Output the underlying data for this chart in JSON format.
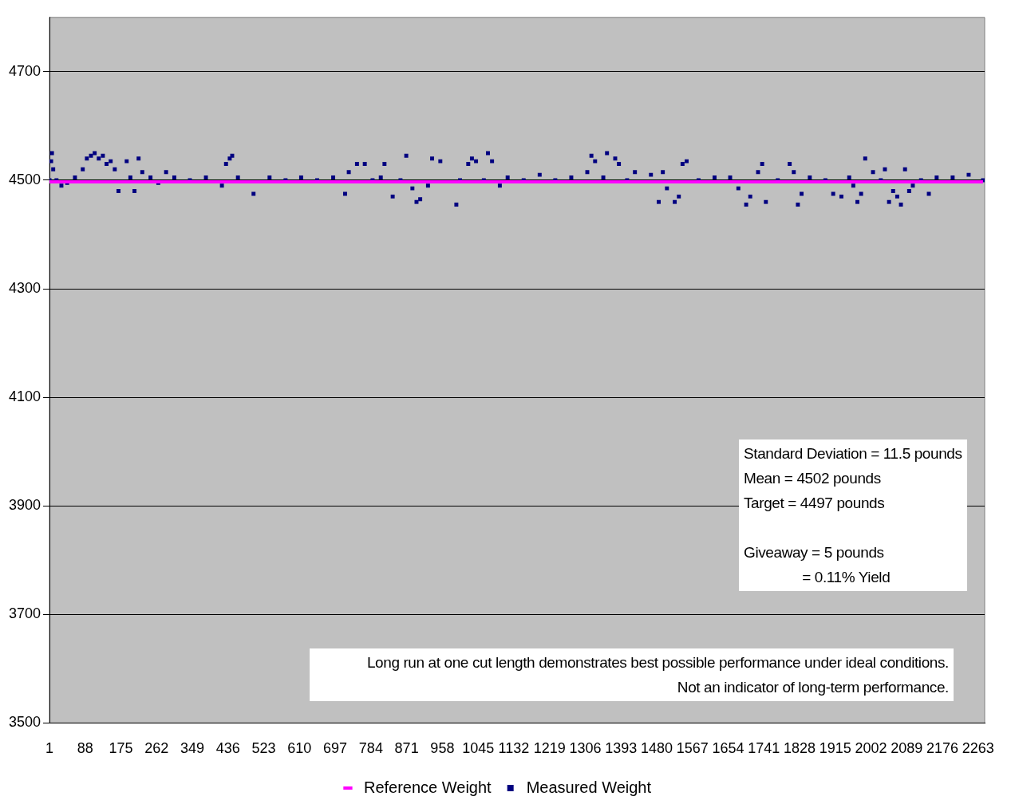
{
  "chart_data": {
    "type": "scatter",
    "xlim": [
      1,
      2279
    ],
    "xticks": [
      1,
      88,
      175,
      262,
      349,
      436,
      523,
      610,
      697,
      784,
      871,
      958,
      1045,
      1132,
      1219,
      1306,
      1393,
      1480,
      1567,
      1654,
      1741,
      1828,
      1915,
      2002,
      2089,
      2176,
      2263
    ],
    "ylim": [
      3500,
      4800
    ],
    "yticks": [
      3500,
      {
        "value": 3700,
        "label": "3700"
      },
      3900,
      4100,
      4300,
      4500,
      4700
    ],
    "grid": "y",
    "legend": "bottom",
    "annotations": [
      "Standard Deviation = 11.5 pounds\nMean = 4502 pounds\nTarget = 4497 pounds\n\nGiveaway = 5 pounds\n               = 0.11% Yield",
      "Long run at one cut length demonstrates best possible performance under ideal conditions.\nNot an indicator of long-term performance."
    ],
    "series": [
      {
        "name": "Reference Weight",
        "type": "line",
        "color": "#ff00ff",
        "marker": "none",
        "x": [
          1,
          2275
        ],
        "values": [
          4497,
          4497
        ]
      },
      {
        "name": "Measured Weight",
        "color": "#000080",
        "marker": "square",
        "x": [
          1,
          5,
          7,
          10,
          18,
          30,
          44,
          63,
          82,
          92,
          102,
          111,
          121,
          131,
          140,
          150,
          160,
          169,
          189,
          198,
          208,
          218,
          227,
          247,
          266,
          285,
          305,
          343,
          382,
          421,
          431,
          440,
          446,
          460,
          498,
          537,
          576,
          614,
          653,
          692,
          721,
          730,
          750,
          769,
          788,
          808,
          817,
          837,
          856,
          870,
          885,
          895,
          904,
          923,
          933,
          953,
          992,
          1001,
          1021,
          1030,
          1040,
          1059,
          1069,
          1079,
          1098,
          1117,
          1156,
          1195,
          1233,
          1272,
          1311,
          1321,
          1330,
          1350,
          1359,
          1379,
          1388,
          1408,
          1427,
          1466,
          1485,
          1495,
          1505,
          1524,
          1534,
          1543,
          1553,
          1582,
          1621,
          1659,
          1679,
          1698,
          1708,
          1727,
          1737,
          1746,
          1775,
          1804,
          1814,
          1824,
          1833,
          1853,
          1891,
          1910,
          1930,
          1949,
          1959,
          1969,
          1978,
          1988,
          2007,
          2026,
          2036,
          2046,
          2056,
          2066,
          2075,
          2085,
          2095,
          2104,
          2124,
          2143,
          2162,
          2201,
          2240,
          2275
        ],
        "values": [
          4500,
          4535,
          4550,
          4520,
          4500,
          4490,
          4495,
          4505,
          4520,
          4540,
          4545,
          4550,
          4540,
          4545,
          4530,
          4535,
          4520,
          4480,
          4535,
          4505,
          4480,
          4540,
          4515,
          4505,
          4495,
          4515,
          4505,
          4500,
          4505,
          4490,
          4530,
          4540,
          4545,
          4505,
          4475,
          4505,
          4500,
          4505,
          4500,
          4505,
          4475,
          4515,
          4530,
          4530,
          4500,
          4505,
          4530,
          4470,
          4500,
          4545,
          4485,
          4460,
          4465,
          4490,
          4540,
          4535,
          4455,
          4500,
          4530,
          4540,
          4535,
          4500,
          4550,
          4535,
          4490,
          4505,
          4500,
          4510,
          4500,
          4505,
          4515,
          4545,
          4535,
          4505,
          4550,
          4540,
          4530,
          4500,
          4515,
          4510,
          4460,
          4515,
          4485,
          4460,
          4470,
          4530,
          4535,
          4500,
          4505,
          4505,
          4485,
          4455,
          4470,
          4515,
          4530,
          4460,
          4500,
          4530,
          4515,
          4455,
          4475,
          4505,
          4500,
          4475,
          4470,
          4505,
          4490,
          4460,
          4475,
          4540,
          4515,
          4500,
          4520,
          4460,
          4480,
          4470,
          4455,
          4520,
          4480,
          4490,
          4500,
          4475,
          4505,
          4505,
          4510,
          4500
        ]
      }
    ]
  }
}
